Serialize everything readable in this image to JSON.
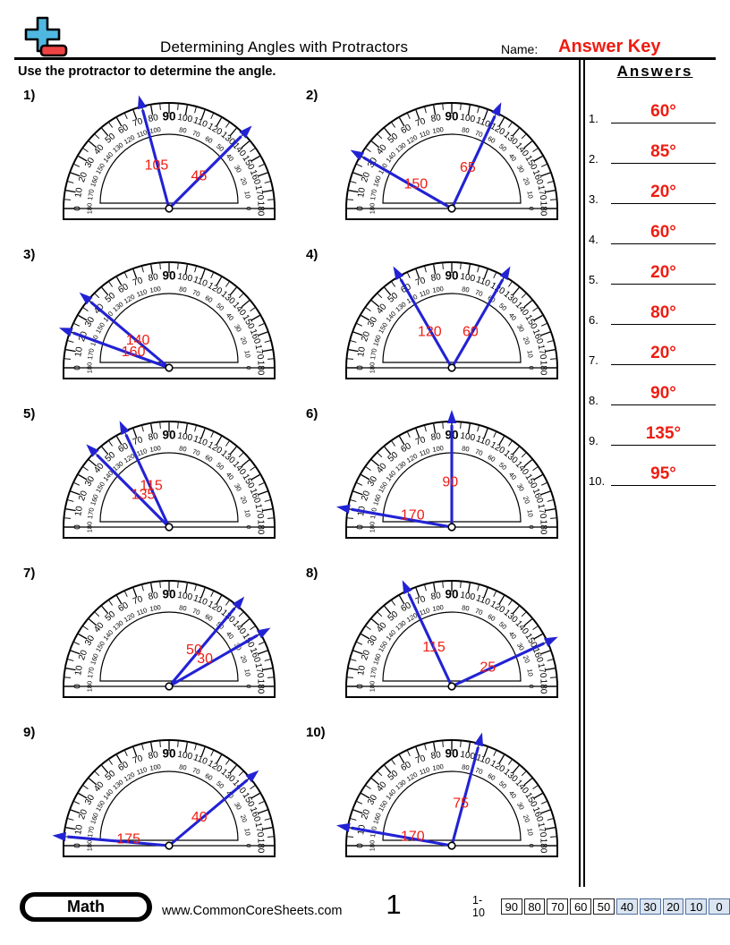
{
  "header": {
    "title": "Determining Angles with Protractors",
    "name_label": "Name:",
    "answer_key": "Answer Key",
    "instruction": "Use the protractor to determine the angle."
  },
  "answers_panel": {
    "title": "Answers",
    "items": [
      {
        "num": "1.",
        "value": "60°"
      },
      {
        "num": "2.",
        "value": "85°"
      },
      {
        "num": "3.",
        "value": "20°"
      },
      {
        "num": "4.",
        "value": "60°"
      },
      {
        "num": "5.",
        "value": "20°"
      },
      {
        "num": "6.",
        "value": "80°"
      },
      {
        "num": "7.",
        "value": "20°"
      },
      {
        "num": "8.",
        "value": "90°"
      },
      {
        "num": "9.",
        "value": "135°"
      },
      {
        "num": "10.",
        "value": "95°"
      }
    ]
  },
  "chart_data": {
    "type": "protractor-worksheet",
    "scale": {
      "min": 0,
      "max": 180,
      "major_step": 10,
      "minor_step": 5,
      "outer_scale": "0 at left to 180 at right",
      "inner_scale": "180 at left to 0 at right",
      "top_shared_label": "90"
    },
    "problems": [
      {
        "num": "1)",
        "rays": [
          {
            "reading": 105,
            "label_angle": 106,
            "label_r": 51
          },
          {
            "reading": 45,
            "label_angle": 48,
            "label_r": 50
          }
        ]
      },
      {
        "num": "2)",
        "rays": [
          {
            "reading": 150,
            "label_angle": 145,
            "label_r": 49
          },
          {
            "reading": 65,
            "label_angle": 69,
            "label_r": 50
          }
        ]
      },
      {
        "num": "3)",
        "rays": [
          {
            "reading": 140,
            "label_angle": 138,
            "label_r": 47
          },
          {
            "reading": 160,
            "label_angle": 155,
            "label_r": 44
          }
        ]
      },
      {
        "num": "4)",
        "rays": [
          {
            "reading": 120,
            "label_angle": 121,
            "label_r": 48
          },
          {
            "reading": 60,
            "label_angle": 63,
            "label_r": 46
          }
        ]
      },
      {
        "num": "5)",
        "rays": [
          {
            "reading": 115,
            "label_angle": 113,
            "label_r": 51
          },
          {
            "reading": 135,
            "label_angle": 128,
            "label_r": 47
          }
        ]
      },
      {
        "num": "6)",
        "rays": [
          {
            "reading": 90,
            "label_angle": 92,
            "label_r": 51
          },
          {
            "reading": 170,
            "label_angle": 162,
            "label_r": 46
          }
        ]
      },
      {
        "num": "7)",
        "rays": [
          {
            "reading": 50,
            "label_angle": 56,
            "label_r": 50
          },
          {
            "reading": 30,
            "label_angle": 38,
            "label_r": 51
          }
        ]
      },
      {
        "num": "8)",
        "rays": [
          {
            "reading": 115,
            "label_angle": 114,
            "label_r": 49
          },
          {
            "reading": 25,
            "label_angle": 29,
            "label_r": 46
          }
        ]
      },
      {
        "num": "9)",
        "rays": [
          {
            "reading": 40,
            "label_angle": 44,
            "label_r": 47
          },
          {
            "reading": 175,
            "label_angle": 170,
            "label_r": 46
          }
        ]
      },
      {
        "num": "10)",
        "rays": [
          {
            "reading": 75,
            "label_angle": 78,
            "label_r": 49
          },
          {
            "reading": 170,
            "label_angle": 166,
            "label_r": 45
          }
        ]
      }
    ]
  },
  "footer": {
    "badge": "Math",
    "site": "www.CommonCoreSheets.com",
    "page": "1",
    "score_label": "1-10",
    "scores": [
      "90",
      "80",
      "70",
      "60",
      "50",
      "40",
      "30",
      "20",
      "10",
      "0"
    ],
    "highlight_from_index": 5
  },
  "colors": {
    "ray_blue": "#2222d4",
    "label_red": "#ef1c12",
    "answer_red": "#ef1c12",
    "score_fill": "#dbe5f1",
    "score_border": "#51709f",
    "logo_blue": "#4fb8e1",
    "logo_red": "#ef4343"
  }
}
